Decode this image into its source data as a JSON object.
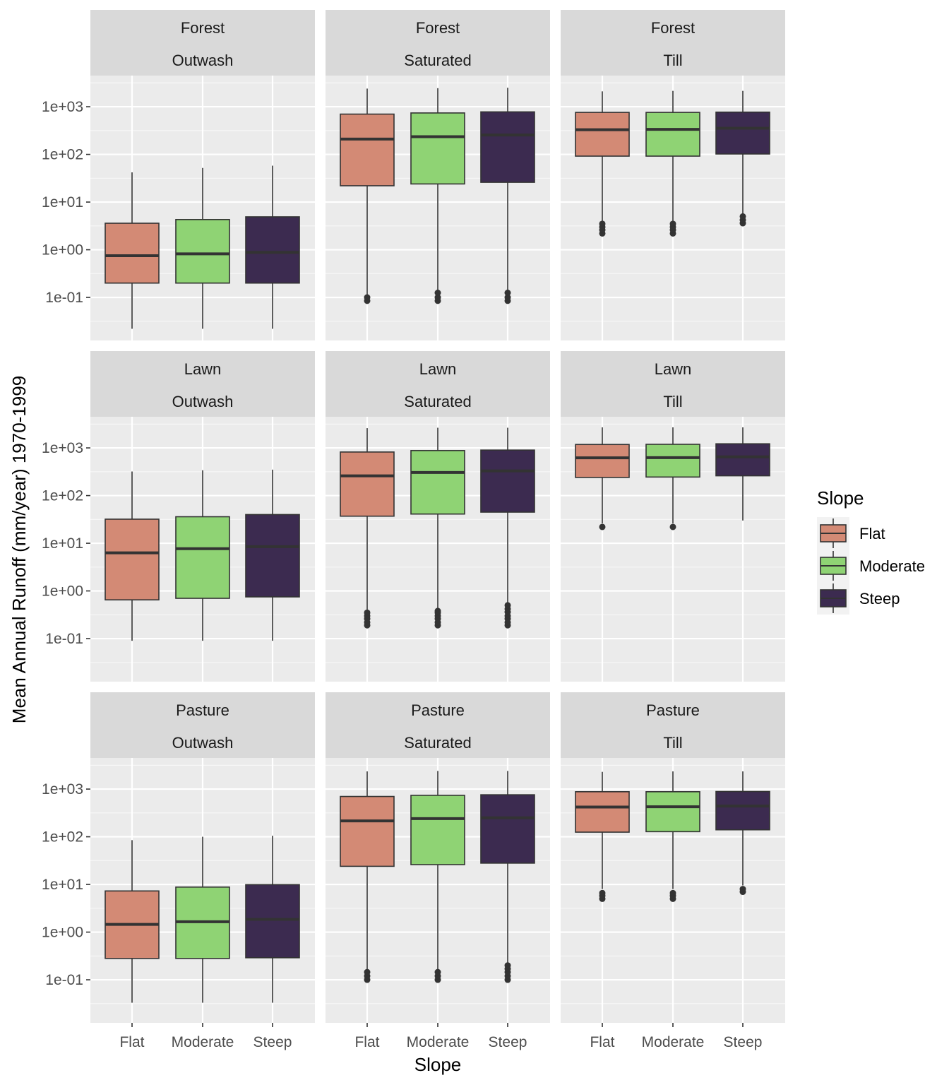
{
  "chart_data": {
    "type": "boxplot",
    "xlabel": "Slope",
    "ylabel": "Mean Annual Runoff (mm/year) 1970-1999",
    "y_scale": "log10",
    "ylim": [
      0.0125,
      4500
    ],
    "y_ticks": [
      0.1,
      1,
      10,
      100,
      1000
    ],
    "y_tick_labels": [
      "1e-01",
      "1e+00",
      "1e+01",
      "1e+02",
      "1e+03"
    ],
    "categories": [
      "Flat",
      "Moderate",
      "Steep"
    ],
    "legend": {
      "title": "Slope",
      "placement": "right",
      "entries": [
        {
          "label": "Flat",
          "color": "#d38a75"
        },
        {
          "label": "Moderate",
          "color": "#8fd374"
        },
        {
          "label": "Steep",
          "color": "#3c2b50"
        }
      ]
    },
    "panels": [
      {
        "row": "Forest",
        "col": "Outwash",
        "boxes": [
          {
            "category": "Flat",
            "low": 0.022,
            "q1": 0.2,
            "median": 0.75,
            "q3": 3.6,
            "high": 42,
            "outliers": []
          },
          {
            "category": "Moderate",
            "low": 0.022,
            "q1": 0.2,
            "median": 0.82,
            "q3": 4.3,
            "high": 52,
            "outliers": []
          },
          {
            "category": "Steep",
            "low": 0.022,
            "q1": 0.2,
            "median": 0.88,
            "q3": 4.9,
            "high": 58,
            "outliers": []
          }
        ]
      },
      {
        "row": "Forest",
        "col": "Saturated",
        "boxes": [
          {
            "category": "Flat",
            "low": 0.11,
            "q1": 22,
            "median": 210,
            "q3": 700,
            "high": 2400,
            "outliers": [
              0.085,
              0.1
            ]
          },
          {
            "category": "Moderate",
            "low": 0.13,
            "q1": 24,
            "median": 235,
            "q3": 740,
            "high": 2450,
            "outliers": [
              0.085,
              0.1,
              0.125
            ]
          },
          {
            "category": "Steep",
            "low": 0.13,
            "q1": 26,
            "median": 255,
            "q3": 780,
            "high": 2500,
            "outliers": [
              0.085,
              0.1,
              0.125
            ]
          }
        ]
      },
      {
        "row": "Forest",
        "col": "Till",
        "boxes": [
          {
            "category": "Flat",
            "low": 4.0,
            "q1": 92,
            "median": 330,
            "q3": 760,
            "high": 2100,
            "outliers": [
              2.2,
              2.6,
              3.0,
              3.5
            ]
          },
          {
            "category": "Moderate",
            "low": 4.0,
            "q1": 92,
            "median": 335,
            "q3": 760,
            "high": 2150,
            "outliers": [
              2.2,
              2.6,
              3.0,
              3.5
            ]
          },
          {
            "category": "Steep",
            "low": 5.5,
            "q1": 102,
            "median": 355,
            "q3": 770,
            "high": 2150,
            "outliers": [
              3.6,
              4.2,
              5.0
            ]
          }
        ]
      },
      {
        "row": "Lawn",
        "col": "Outwash",
        "boxes": [
          {
            "category": "Flat",
            "low": 0.09,
            "q1": 0.65,
            "median": 6.3,
            "q3": 32,
            "high": 320,
            "outliers": []
          },
          {
            "category": "Moderate",
            "low": 0.09,
            "q1": 0.7,
            "median": 7.7,
            "q3": 36,
            "high": 340,
            "outliers": []
          },
          {
            "category": "Steep",
            "low": 0.09,
            "q1": 0.75,
            "median": 8.5,
            "q3": 40,
            "high": 350,
            "outliers": []
          }
        ]
      },
      {
        "row": "Lawn",
        "col": "Saturated",
        "boxes": [
          {
            "category": "Flat",
            "low": 0.38,
            "q1": 37,
            "median": 260,
            "q3": 820,
            "high": 2600,
            "outliers": [
              0.19,
              0.22,
              0.26,
              0.3,
              0.35
            ]
          },
          {
            "category": "Moderate",
            "low": 0.42,
            "q1": 41,
            "median": 305,
            "q3": 880,
            "high": 2650,
            "outliers": [
              0.19,
              0.22,
              0.26,
              0.3,
              0.35,
              0.38
            ]
          },
          {
            "category": "Steep",
            "low": 0.55,
            "q1": 45,
            "median": 330,
            "q3": 900,
            "high": 2650,
            "outliers": [
              0.19,
              0.22,
              0.26,
              0.3,
              0.36,
              0.42,
              0.5
            ]
          }
        ]
      },
      {
        "row": "Lawn",
        "col": "Till",
        "boxes": [
          {
            "category": "Flat",
            "low": 26,
            "q1": 240,
            "median": 620,
            "q3": 1180,
            "high": 2700,
            "outliers": [
              22
            ]
          },
          {
            "category": "Moderate",
            "low": 26,
            "q1": 245,
            "median": 625,
            "q3": 1190,
            "high": 2700,
            "outliers": [
              22
            ]
          },
          {
            "category": "Steep",
            "low": 30,
            "q1": 260,
            "median": 650,
            "q3": 1220,
            "high": 2700,
            "outliers": []
          }
        ]
      },
      {
        "row": "Pasture",
        "col": "Outwash",
        "boxes": [
          {
            "category": "Flat",
            "low": 0.033,
            "q1": 0.28,
            "median": 1.45,
            "q3": 7.3,
            "high": 85,
            "outliers": []
          },
          {
            "category": "Moderate",
            "low": 0.033,
            "q1": 0.28,
            "median": 1.65,
            "q3": 8.8,
            "high": 100,
            "outliers": []
          },
          {
            "category": "Steep",
            "low": 0.033,
            "q1": 0.29,
            "median": 1.85,
            "q3": 9.9,
            "high": 105,
            "outliers": []
          }
        ]
      },
      {
        "row": "Pasture",
        "col": "Saturated",
        "boxes": [
          {
            "category": "Flat",
            "low": 0.16,
            "q1": 24,
            "median": 215,
            "q3": 700,
            "high": 2350,
            "outliers": [
              0.1,
              0.12,
              0.145
            ]
          },
          {
            "category": "Moderate",
            "low": 0.16,
            "q1": 26,
            "median": 240,
            "q3": 740,
            "high": 2400,
            "outliers": [
              0.1,
              0.12,
              0.145
            ]
          },
          {
            "category": "Steep",
            "low": 0.22,
            "q1": 28,
            "median": 250,
            "q3": 760,
            "high": 2400,
            "outliers": [
              0.1,
              0.12,
              0.145,
              0.17,
              0.2
            ]
          }
        ]
      },
      {
        "row": "Pasture",
        "col": "Till",
        "boxes": [
          {
            "category": "Flat",
            "low": 8.0,
            "q1": 125,
            "median": 420,
            "q3": 880,
            "high": 2300,
            "outliers": [
              5.0,
              5.8,
              6.6
            ]
          },
          {
            "category": "Moderate",
            "low": 8.0,
            "q1": 128,
            "median": 425,
            "q3": 880,
            "high": 2350,
            "outliers": [
              5.0,
              5.8,
              6.6
            ]
          },
          {
            "category": "Steep",
            "low": 9.5,
            "q1": 140,
            "median": 440,
            "q3": 890,
            "high": 2350,
            "outliers": [
              7.0,
              8.0
            ]
          }
        ]
      }
    ]
  }
}
